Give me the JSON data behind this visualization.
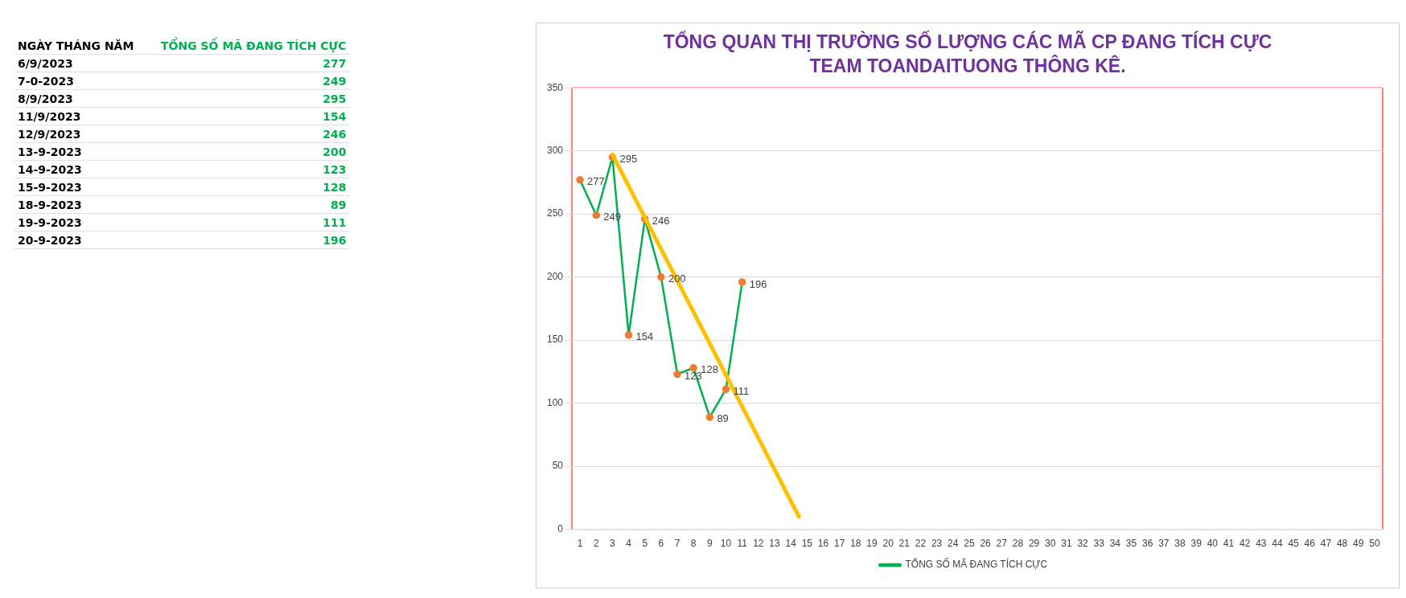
{
  "chart_data": [
    {
      "type": "other",
      "xlabel": "NGÀY THÁNG NĂM",
      "ylabel": "TỔNG SỐ MÃ ĐANG TÍCH CỰC",
      "categories": [
        "6/9/2023",
        "7-0-2023",
        "8/9/2023",
        "11/9/2023",
        "12/9/2023",
        "13-9-2023",
        "14-9-2023",
        "15-9-2023",
        "18-9-2023",
        "19-9-2023",
        "20-9-2023"
      ],
      "values": [
        277,
        249,
        295,
        154,
        246,
        200,
        123,
        128,
        89,
        111,
        196
      ],
      "data_labels": true
    },
    {
      "type": "line",
      "title": "TỔNG QUAN THỊ TRƯỜNG SỐ LƯỢNG CÁC MÃ CP ĐANG TÍCH CỰC\nTEAM TOANDAITUONG THÔNG KÊ.",
      "xlim": [
        0.5,
        50.5
      ],
      "xticks": [
        1,
        2,
        3,
        4,
        5,
        6,
        7,
        8,
        9,
        10,
        11,
        12,
        13,
        14,
        15,
        16,
        17,
        18,
        19,
        20,
        21,
        22,
        23,
        24,
        25,
        26,
        27,
        28,
        29,
        30,
        31,
        32,
        33,
        34,
        35,
        36,
        37,
        38,
        39,
        40,
        41,
        42,
        43,
        44,
        45,
        46,
        47,
        48,
        49,
        50
      ],
      "ylim": [
        0,
        350
      ],
      "yticks": [
        0,
        50,
        100,
        150,
        200,
        250,
        300,
        350
      ],
      "grid": "y",
      "legend": "bottom",
      "marker": "circle",
      "series": [
        {
          "name": "TỔNG SỐ MÃ ĐANG TÍCH CỰC",
          "color": "#00b050",
          "x": [
            1,
            2,
            3,
            4,
            5,
            6,
            7,
            8,
            9,
            10,
            11
          ],
          "values": [
            277,
            249,
            295,
            154,
            246,
            200,
            123,
            128,
            89,
            111,
            196
          ],
          "value_labels": [
            "277",
            "249",
            "295",
            "154",
            "246",
            "200",
            "123",
            "128",
            "89",
            "111",
            "196"
          ]
        },
        {
          "type": "line",
          "color": "#ffc000",
          "marker": "none",
          "x": [
            3,
            14.5
          ],
          "values": [
            297,
            10
          ]
        }
      ]
    }
  ]
}
